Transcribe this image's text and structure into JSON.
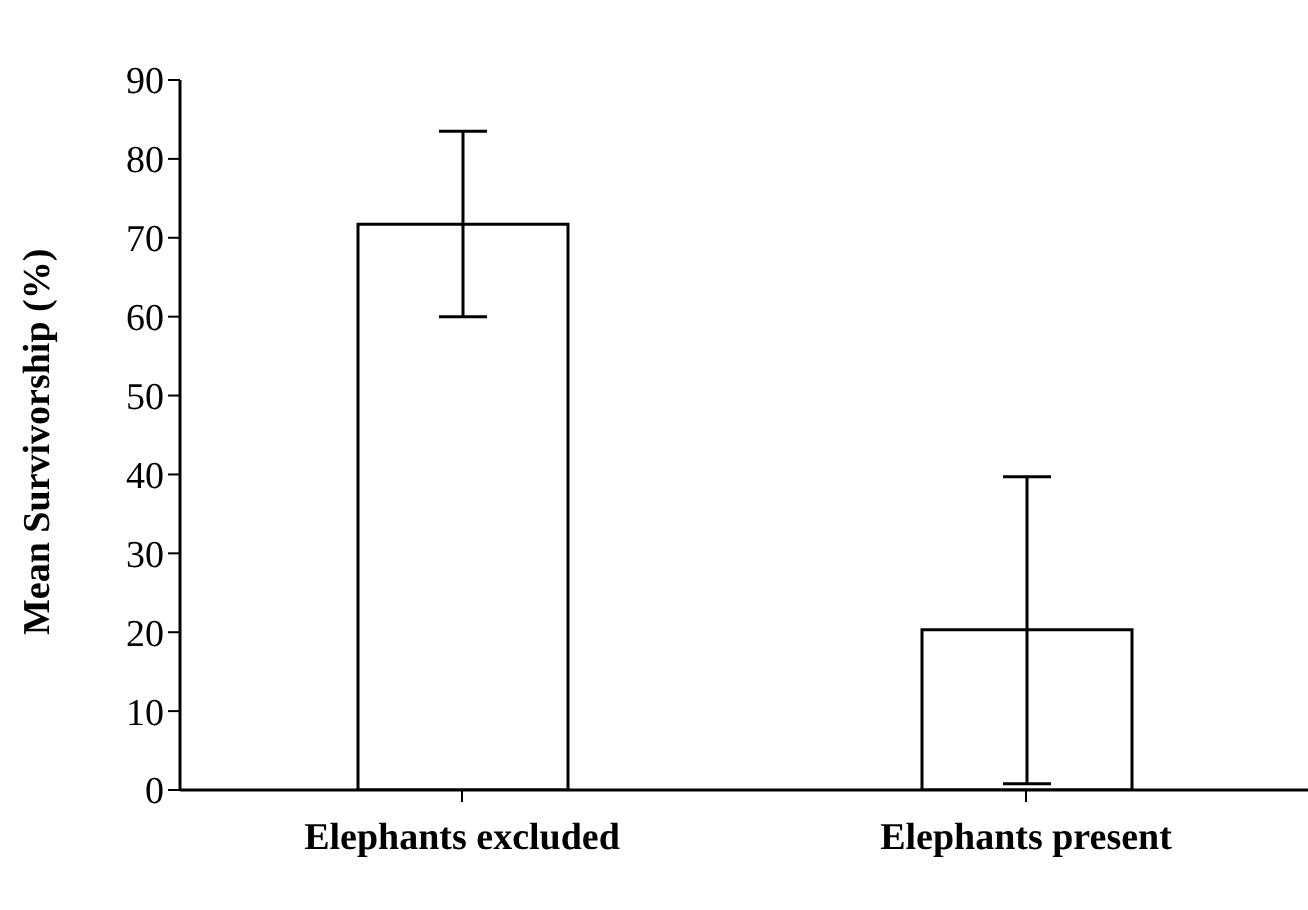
{
  "chart_data": {
    "type": "bar",
    "ylabel": "Mean Survivorship (%)",
    "categories": [
      "Elephants excluded",
      "Elephants present"
    ],
    "values": [
      71.7,
      20.3
    ],
    "color": "#ffffff",
    "errors": [
      [
        60.0,
        83.5
      ],
      [
        0.8,
        39.7
      ]
    ],
    "ylim": [
      0,
      90
    ],
    "yticks": [
      0,
      10,
      20,
      30,
      40,
      50,
      60,
      70,
      80,
      90
    ]
  }
}
